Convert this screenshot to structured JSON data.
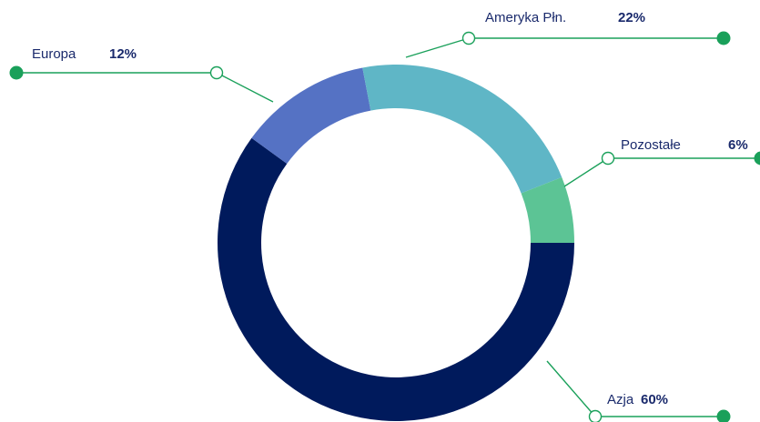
{
  "chart_data": {
    "type": "donut",
    "categories": [
      "Azja",
      "Europa",
      "Ameryka Płn.",
      "Pozostałe"
    ],
    "values": [
      60,
      12,
      22,
      6
    ],
    "value_labels": [
      "60%",
      "12%",
      "22%",
      "6%"
    ],
    "colors": [
      "#001a5c",
      "#5572c4",
      "#5fb6c6",
      "#5cc495"
    ]
  }
}
